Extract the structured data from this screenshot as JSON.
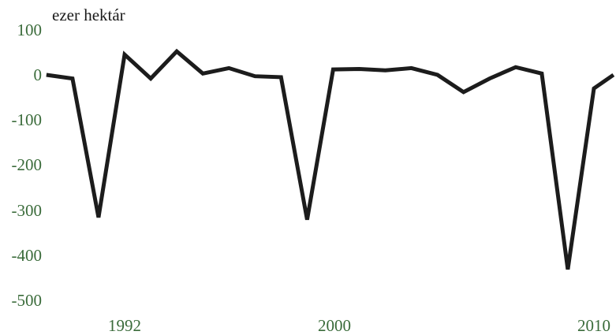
{
  "chart_data": {
    "type": "line",
    "title": "",
    "xlabel": "",
    "ylabel": "ezer hektár",
    "ylim": [
      -500,
      100
    ],
    "yticks": [
      "100",
      "0",
      "-100",
      "-200",
      "-300",
      "-400",
      "-500"
    ],
    "xticks": [
      "1992",
      "2000",
      "2010"
    ],
    "grid": false,
    "legend": "none",
    "colors": {
      "line": "#1c1c1c",
      "tick_text": "#3a6b3a",
      "label_text": "#1a1a1a"
    },
    "x": [
      1989,
      1990,
      1991,
      1992,
      1993,
      1994,
      1995,
      1996,
      1997,
      1998,
      1999,
      2000,
      2001,
      2002,
      2003,
      2004,
      2005,
      2006,
      2007,
      2008,
      2009,
      2010,
      2010.75
    ],
    "series": [
      {
        "values": [
          0,
          -8,
          -315,
          45,
          -8,
          52,
          3,
          15,
          -3,
          -5,
          -320,
          12,
          13,
          10,
          15,
          0,
          -38,
          -8,
          17,
          3,
          -430,
          -30,
          0
        ]
      }
    ]
  }
}
